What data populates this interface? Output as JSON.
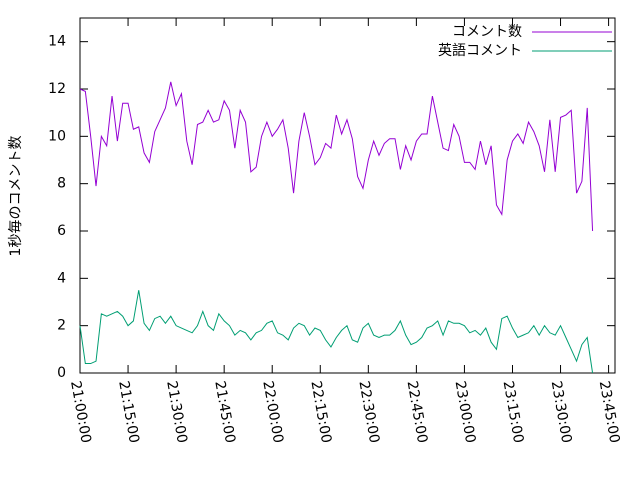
{
  "chart_data": {
    "type": "line",
    "y_label": "1秒毎のコメント数",
    "x": [
      "21:00:00",
      "21:01:40",
      "21:03:20",
      "21:05:00",
      "21:06:40",
      "21:08:20",
      "21:10:00",
      "21:11:40",
      "21:13:20",
      "21:15:00",
      "21:16:40",
      "21:18:20",
      "21:20:00",
      "21:21:40",
      "21:23:20",
      "21:25:00",
      "21:26:40",
      "21:28:20",
      "21:30:00",
      "21:31:40",
      "21:33:20",
      "21:35:00",
      "21:36:40",
      "21:38:20",
      "21:40:00",
      "21:41:40",
      "21:43:20",
      "21:45:00",
      "21:46:40",
      "21:48:20",
      "21:50:00",
      "21:51:40",
      "21:53:20",
      "21:55:00",
      "21:56:40",
      "21:58:20",
      "22:00:00",
      "22:01:40",
      "22:03:20",
      "22:05:00",
      "22:06:40",
      "22:08:20",
      "22:10:00",
      "22:11:40",
      "22:13:20",
      "22:15:00",
      "22:16:40",
      "22:18:20",
      "22:20:00",
      "22:21:40",
      "22:23:20",
      "22:25:00",
      "22:26:40",
      "22:28:20",
      "22:30:00",
      "22:31:40",
      "22:33:20",
      "22:35:00",
      "22:36:40",
      "22:38:20",
      "22:40:00",
      "22:41:40",
      "22:43:20",
      "22:45:00",
      "22:46:40",
      "22:48:20",
      "22:50:00",
      "22:51:40",
      "22:53:20",
      "22:55:00",
      "22:56:40",
      "22:58:20",
      "23:00:00",
      "23:01:40",
      "23:03:20",
      "23:05:00",
      "23:06:40",
      "23:08:20",
      "23:10:00",
      "23:11:40",
      "23:13:20",
      "23:15:00",
      "23:16:40",
      "23:18:20",
      "23:20:00",
      "23:21:40",
      "23:23:20",
      "23:25:00",
      "23:26:40",
      "23:28:20",
      "23:30:00",
      "23:31:40",
      "23:33:20",
      "23:35:00",
      "23:36:40",
      "23:38:20",
      "23:40:00"
    ],
    "series": [
      {
        "name": "コメント数",
        "color": "#9400d3",
        "values": [
          12.0,
          11.9,
          10.0,
          7.9,
          10.0,
          9.6,
          11.7,
          9.8,
          11.4,
          11.4,
          10.3,
          10.4,
          9.3,
          8.9,
          10.2,
          10.7,
          11.2,
          12.3,
          11.3,
          11.8,
          9.8,
          8.8,
          10.5,
          10.6,
          11.1,
          10.6,
          10.7,
          11.5,
          11.1,
          9.5,
          11.1,
          10.6,
          8.5,
          8.7,
          10.0,
          10.6,
          10.0,
          10.3,
          10.7,
          9.5,
          7.6,
          9.8,
          11.0,
          10.0,
          8.8,
          9.1,
          9.7,
          9.5,
          10.9,
          10.1,
          10.7,
          9.9,
          8.3,
          7.8,
          9.0,
          9.8,
          9.2,
          9.7,
          9.9,
          9.9,
          8.6,
          9.6,
          9.0,
          9.8,
          10.1,
          10.1,
          11.7,
          10.6,
          9.5,
          9.4,
          10.5,
          10.0,
          8.9,
          8.9,
          8.6,
          9.8,
          8.8,
          9.6,
          7.1,
          6.7,
          9.0,
          9.8,
          10.1,
          9.7,
          10.6,
          10.2,
          9.6,
          8.5,
          10.7,
          8.5,
          10.8,
          10.9,
          11.1,
          7.6,
          8.1,
          11.2,
          6.0
        ]
      },
      {
        "name": "英語コメント",
        "color": "#009e73",
        "values": [
          2.0,
          0.4,
          0.4,
          0.5,
          2.5,
          2.4,
          2.5,
          2.6,
          2.4,
          2.0,
          2.2,
          3.5,
          2.1,
          1.8,
          2.3,
          2.4,
          2.1,
          2.4,
          2.0,
          1.9,
          1.8,
          1.7,
          2.0,
          2.6,
          2.0,
          1.8,
          2.5,
          2.2,
          2.0,
          1.6,
          1.8,
          1.7,
          1.4,
          1.7,
          1.8,
          2.1,
          2.2,
          1.7,
          1.6,
          1.4,
          1.9,
          2.1,
          2.0,
          1.6,
          1.9,
          1.8,
          1.4,
          1.1,
          1.5,
          1.8,
          2.0,
          1.4,
          1.3,
          1.9,
          2.1,
          1.6,
          1.5,
          1.6,
          1.6,
          1.8,
          2.2,
          1.6,
          1.2,
          1.3,
          1.5,
          1.9,
          2.0,
          2.2,
          1.6,
          2.2,
          2.1,
          2.1,
          2.0,
          1.7,
          1.8,
          1.6,
          1.9,
          1.3,
          1.0,
          2.3,
          2.4,
          1.9,
          1.5,
          1.6,
          1.7,
          2.0,
          1.6,
          2.0,
          1.7,
          1.6,
          2.0,
          1.5,
          1.0,
          0.5,
          1.2,
          1.5,
          0.0
        ]
      }
    ],
    "xlim": [
      "21:00:00",
      "23:47:00"
    ],
    "xticks": [
      "21:00:00",
      "21:15:00",
      "21:30:00",
      "21:45:00",
      "22:00:00",
      "22:15:00",
      "22:30:00",
      "22:45:00",
      "23:00:00",
      "23:15:00",
      "23:30:00",
      "23:45:00"
    ],
    "ylim": [
      0,
      15
    ],
    "yticks": [
      0,
      2,
      4,
      6,
      8,
      10,
      12,
      14
    ],
    "legend": "top-right"
  }
}
